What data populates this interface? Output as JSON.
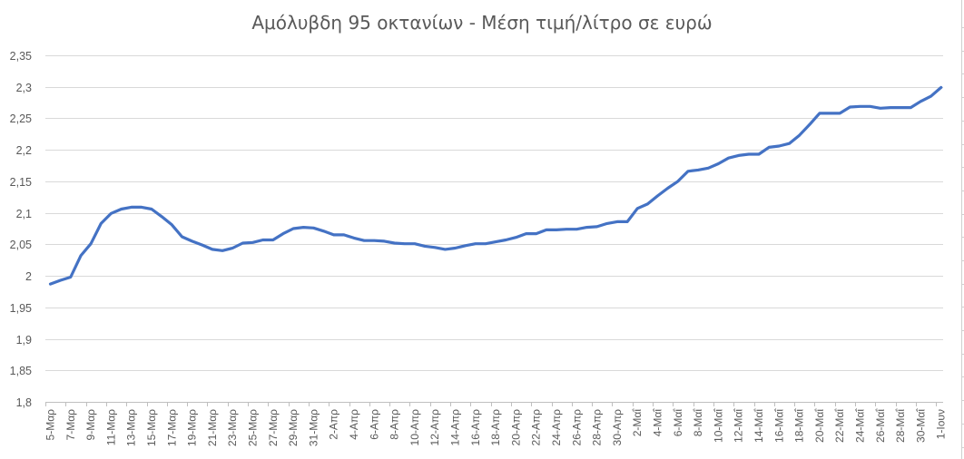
{
  "chart_data": {
    "type": "line",
    "title": "Αμόλυβδη 95 οκτανίων - Μέση τιμή/λίτρο σε ευρώ",
    "xlabel": "",
    "ylabel": "",
    "ylim": [
      1.8,
      2.35
    ],
    "y_ticks": [
      "1,8",
      "1,85",
      "1,9",
      "1,95",
      "2",
      "2,05",
      "2,1",
      "2,15",
      "2,2",
      "2,25",
      "2,3",
      "2,35"
    ],
    "y_tick_values": [
      1.8,
      1.85,
      1.9,
      1.95,
      2.0,
      2.05,
      2.1,
      2.15,
      2.2,
      2.25,
      2.3,
      2.35
    ],
    "grid": true,
    "legend": "none",
    "line_color": "#4472C4",
    "x_tick_labels": [
      "5-Μαρ",
      "7-Μαρ",
      "9-Μαρ",
      "11-Μαρ",
      "13-Μαρ",
      "15-Μαρ",
      "17-Μαρ",
      "19-Μαρ",
      "21-Μαρ",
      "23-Μαρ",
      "25-Μαρ",
      "27-Μαρ",
      "29-Μαρ",
      "31-Μαρ",
      "2-Απρ",
      "4-Απρ",
      "6-Απρ",
      "8-Απρ",
      "10-Απρ",
      "12-Απρ",
      "14-Απρ",
      "16-Απρ",
      "18-Απρ",
      "20-Απρ",
      "22-Απρ",
      "24-Απρ",
      "26-Απρ",
      "28-Απρ",
      "30-Απρ",
      "2-Μαΐ",
      "4-Μαΐ",
      "6-Μαΐ",
      "8-Μαΐ",
      "10-Μαΐ",
      "12-Μαΐ",
      "14-Μαΐ",
      "16-Μαΐ",
      "18-Μαΐ",
      "20-Μαΐ",
      "22-Μαΐ",
      "24-Μαΐ",
      "26-Μαΐ",
      "28-Μαΐ",
      "30-Μαΐ",
      "1-Ιουν"
    ],
    "categories": [
      "5-Μαρ",
      "6-Μαρ",
      "7-Μαρ",
      "8-Μαρ",
      "9-Μαρ",
      "10-Μαρ",
      "11-Μαρ",
      "12-Μαρ",
      "13-Μαρ",
      "14-Μαρ",
      "15-Μαρ",
      "16-Μαρ",
      "17-Μαρ",
      "18-Μαρ",
      "19-Μαρ",
      "20-Μαρ",
      "21-Μαρ",
      "22-Μαρ",
      "23-Μαρ",
      "24-Μαρ",
      "25-Μαρ",
      "26-Μαρ",
      "27-Μαρ",
      "28-Μαρ",
      "29-Μαρ",
      "30-Μαρ",
      "31-Μαρ",
      "1-Απρ",
      "2-Απρ",
      "3-Απρ",
      "4-Απρ",
      "5-Απρ",
      "6-Απρ",
      "7-Απρ",
      "8-Απρ",
      "9-Απρ",
      "10-Απρ",
      "11-Απρ",
      "12-Απρ",
      "13-Απρ",
      "14-Απρ",
      "15-Απρ",
      "16-Απρ",
      "17-Απρ",
      "18-Απρ",
      "19-Απρ",
      "20-Απρ",
      "21-Απρ",
      "22-Απρ",
      "23-Απρ",
      "24-Απρ",
      "25-Απρ",
      "26-Απρ",
      "27-Απρ",
      "28-Απρ",
      "29-Απρ",
      "30-Απρ",
      "1-Μαΐ",
      "2-Μαΐ",
      "3-Μαΐ",
      "4-Μαΐ",
      "5-Μαΐ",
      "6-Μαΐ",
      "7-Μαΐ",
      "8-Μαΐ",
      "9-Μαΐ",
      "10-Μαΐ",
      "11-Μαΐ",
      "12-Μαΐ",
      "13-Μαΐ",
      "14-Μαΐ",
      "15-Μαΐ",
      "16-Μαΐ",
      "17-Μαΐ",
      "18-Μαΐ",
      "19-Μαΐ",
      "20-Μαΐ",
      "21-Μαΐ",
      "22-Μαΐ",
      "23-Μαΐ",
      "24-Μαΐ",
      "25-Μαΐ",
      "26-Μαΐ",
      "27-Μαΐ",
      "28-Μαΐ",
      "29-Μαΐ",
      "30-Μαΐ",
      "31-Μαΐ",
      "1-Ιουν"
    ],
    "series": [
      {
        "name": "Αμόλυβδη 95",
        "values": [
          1.987,
          1.993,
          1.998,
          2.032,
          2.051,
          2.083,
          2.099,
          2.106,
          2.109,
          2.109,
          2.106,
          2.094,
          2.081,
          2.062,
          2.055,
          2.049,
          2.042,
          2.04,
          2.044,
          2.052,
          2.053,
          2.057,
          2.057,
          2.067,
          2.075,
          2.077,
          2.076,
          2.071,
          2.065,
          2.065,
          2.06,
          2.056,
          2.056,
          2.055,
          2.052,
          2.051,
          2.051,
          2.047,
          2.045,
          2.042,
          2.044,
          2.048,
          2.051,
          2.051,
          2.054,
          2.057,
          2.061,
          2.067,
          2.067,
          2.073,
          2.073,
          2.074,
          2.074,
          2.077,
          2.078,
          2.083,
          2.086,
          2.086,
          2.107,
          2.114,
          2.127,
          2.139,
          2.15,
          2.166,
          2.168,
          2.171,
          2.178,
          2.187,
          2.191,
          2.193,
          2.193,
          2.204,
          2.206,
          2.21,
          2.223,
          2.24,
          2.258,
          2.258,
          2.258,
          2.268,
          2.269,
          2.269,
          2.266,
          2.267,
          2.267,
          2.267,
          2.277,
          2.285,
          2.299
        ]
      }
    ]
  }
}
